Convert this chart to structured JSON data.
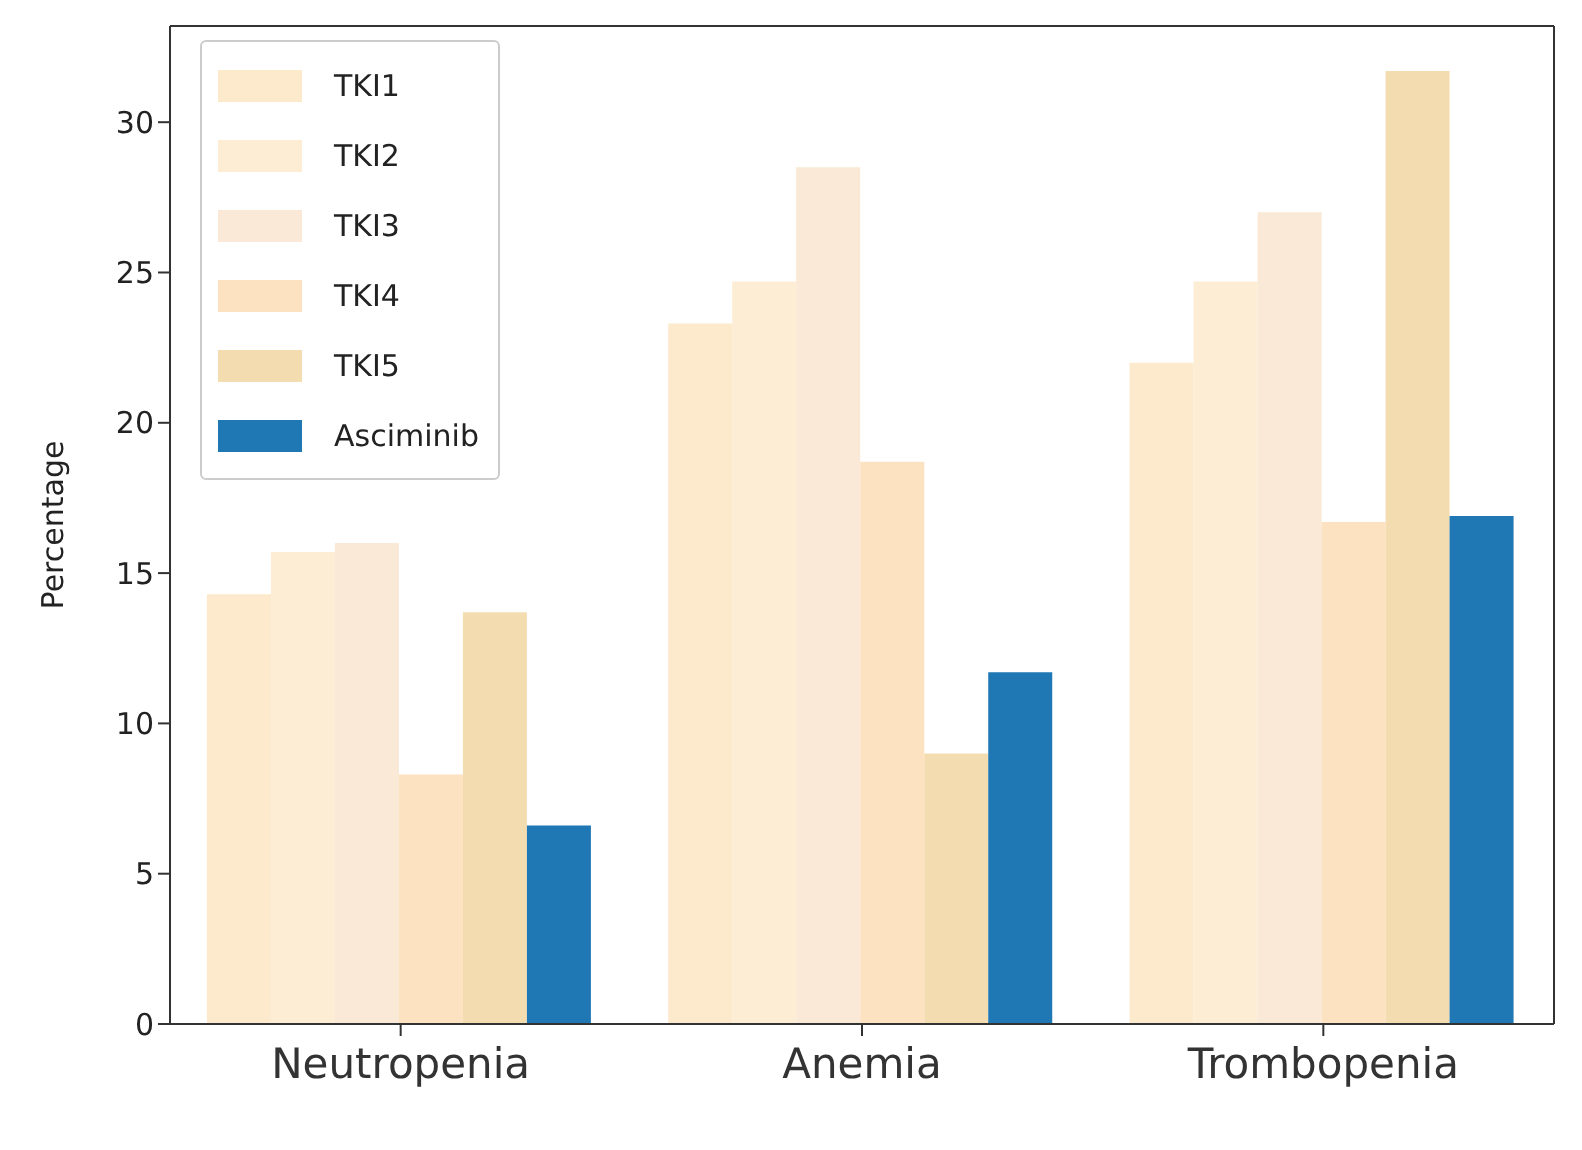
{
  "chart_data": {
    "type": "bar",
    "ylabel": "Percentage",
    "categories": [
      "Neutropenia",
      "Anemia",
      "Trombopenia"
    ],
    "series": [
      {
        "name": "TKI1",
        "color": "#fde9cb",
        "values": [
          14.3,
          23.3,
          22.0
        ]
      },
      {
        "name": "TKI2",
        "color": "#fdedd4",
        "values": [
          15.7,
          24.7,
          24.7
        ]
      },
      {
        "name": "TKI3",
        "color": "#f9e9d6",
        "values": [
          16.0,
          28.5,
          27.0
        ]
      },
      {
        "name": "TKI4",
        "color": "#fde2c1",
        "values": [
          8.3,
          18.7,
          16.7
        ]
      },
      {
        "name": "TKI5",
        "color": "#f3dcb0",
        "values": [
          13.7,
          9.0,
          31.7
        ]
      },
      {
        "name": "Asciminib",
        "color": "#1f77b4",
        "values": [
          6.6,
          11.7,
          16.9
        ]
      }
    ],
    "ylim": [
      0,
      33.2
    ],
    "yticks": [
      0,
      5,
      10,
      15,
      20,
      25,
      30
    ],
    "legend": "top left"
  }
}
